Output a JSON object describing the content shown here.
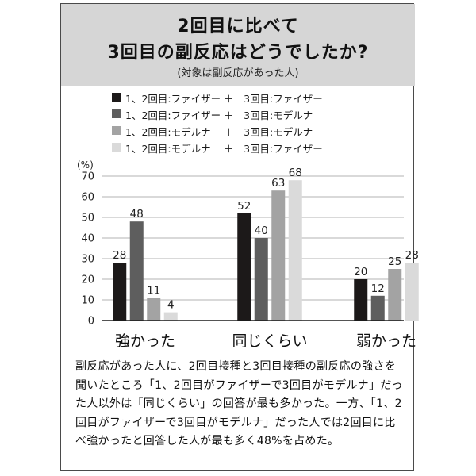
{
  "header": {
    "title_line1": "2回目に比べて",
    "title_line2": "3回目の副反応はどうでしたか?",
    "subtitle": "(対象は副反応があった人)"
  },
  "legend": [
    {
      "label": "1、2回目:ファイザー ＋　3回目:ファイザー",
      "color": "#1c1919"
    },
    {
      "label": "1、2回目:ファイザー ＋　3回目:モデルナ",
      "color": "#5e5e5e"
    },
    {
      "label": "1、2回目:モデルナ　 ＋　3回目:モデルナ",
      "color": "#a3a3a3"
    },
    {
      "label": "1、2回目:モデルナ　 ＋　3回目:ファイザー",
      "color": "#dadada"
    }
  ],
  "chart_data": {
    "type": "bar",
    "unit_label": "(%)",
    "categories": [
      "強かった",
      "同じくらい",
      "弱かった"
    ],
    "series": [
      {
        "name": "1、2回目:ファイザー ＋ 3回目:ファイザー",
        "values": [
          28,
          52,
          20
        ],
        "color": "#1c1919"
      },
      {
        "name": "1、2回目:ファイザー ＋ 3回目:モデルナ",
        "values": [
          48,
          40,
          12
        ],
        "color": "#5e5e5e"
      },
      {
        "name": "1、2回目:モデルナ ＋ 3回目:モデルナ",
        "values": [
          11,
          63,
          25
        ],
        "color": "#a3a3a3"
      },
      {
        "name": "1、2回目:モデルナ ＋ 3回目:ファイザー",
        "values": [
          4,
          68,
          28
        ],
        "color": "#dadada"
      }
    ],
    "ylim": [
      0,
      70
    ],
    "yticks": [
      0,
      10,
      20,
      30,
      40,
      50,
      60,
      70
    ],
    "grid": true,
    "legend_position": "top"
  },
  "body_text": "副反応があった人に、2回目接種と3回目接種の副反応の強さを聞いたところ「1、2回目がファイザーで3回目がモデルナ」だった人以外は「同じくらい」の回答が最も多かった。一方、「1、2回目がファイザーで3回目がモデルナ」だった人では2回目に比べ強かったと回答した人が最も多く48%を占めた。"
}
